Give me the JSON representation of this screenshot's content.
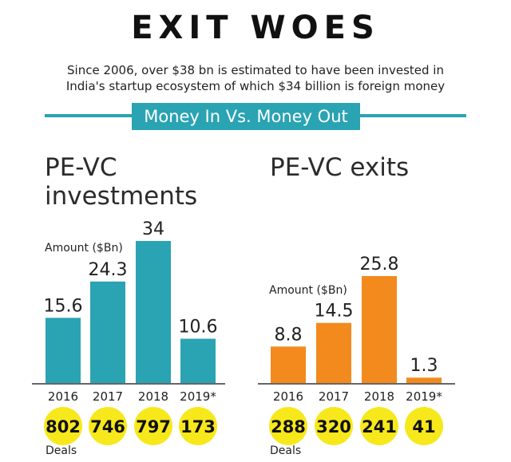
{
  "header": {
    "title": "EXIT WOES",
    "subtitle_line1": "Since 2006, over $38 bn is estimated to have been invested in",
    "subtitle_line2": "India's startup ecosystem of which $34 billion is foreign money",
    "banner": "Money In Vs. Money Out"
  },
  "colors": {
    "investments_bar": "#2aa3b3",
    "exits_bar": "#f28a1e",
    "deals_circle": "#f7e81c",
    "accent": "#2aa3b3"
  },
  "labels": {
    "amount_unit": "Amount ($Bn)",
    "deals": "Deals"
  },
  "chart_data": [
    {
      "type": "bar",
      "title": "PE-VC investments",
      "title_line1": "PE-VC",
      "title_line2": "investments",
      "ylabel": "Amount ($Bn)",
      "categories": [
        "2016",
        "2017",
        "2018",
        "2019*"
      ],
      "values": [
        15.6,
        24.3,
        34,
        10.6
      ],
      "value_labels": [
        "15.6",
        "24.3",
        "34",
        "10.6"
      ],
      "deals": [
        "802",
        "746",
        "797",
        "173"
      ],
      "ylim": [
        0,
        34
      ]
    },
    {
      "type": "bar",
      "title": "PE-VC exits",
      "ylabel": "Amount ($Bn)",
      "categories": [
        "2016",
        "2017",
        "2018",
        "2019*"
      ],
      "values": [
        8.8,
        14.5,
        25.8,
        1.3
      ],
      "value_labels": [
        "8.8",
        "14.5",
        "25.8",
        "1.3"
      ],
      "deals": [
        "288",
        "320",
        "241",
        "41"
      ],
      "ylim": [
        0,
        25.8
      ]
    }
  ]
}
